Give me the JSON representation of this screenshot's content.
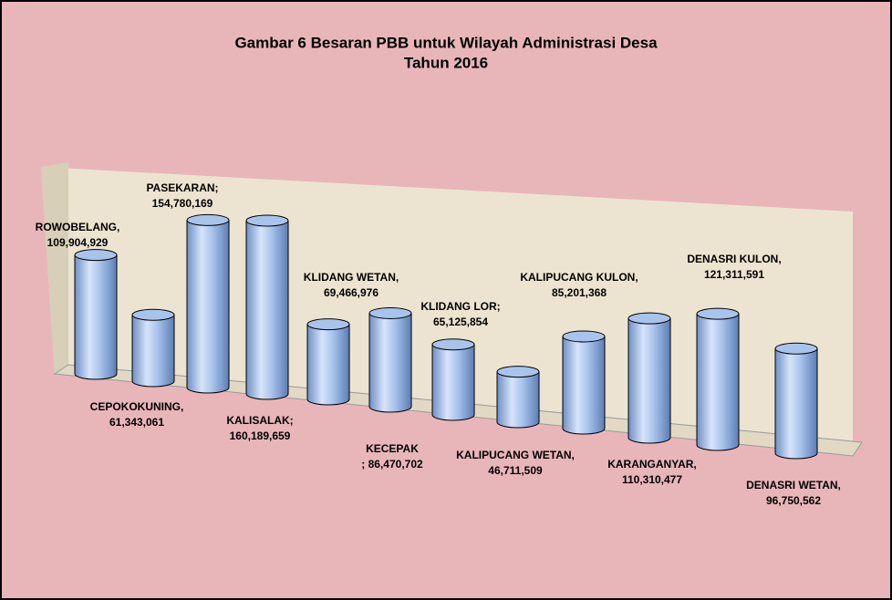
{
  "chart_data": {
    "type": "bar",
    "title": "Gambar 6 Besaran PBB untuk Wilayah Administrasi Desa",
    "subtitle": "Tahun 2016",
    "categories": [
      "ROWOBELANG,",
      "CEPOKOKUNING,",
      "PASEKARAN;",
      "KALISALAK;",
      "KLIDANG WETAN,",
      "KECEPAK",
      "KLIDANG LOR;",
      "KALIPUCANG WETAN,",
      "KALIPUCANG KULON,",
      "KARANGANYAR,",
      "DENASRI KULON,",
      "DENASRI WETAN,"
    ],
    "values": [
      109904929,
      61343061,
      154780169,
      160189659,
      69466976,
      86470702,
      65125854,
      46711509,
      85201368,
      110310477,
      121311591,
      96750562
    ],
    "value_labels": [
      "109,904,929",
      "61,343,061",
      "154,780,169",
      "160,189,659",
      "69,466,976",
      "; 86,470,702",
      "65,125,854",
      "46,711,509",
      "85,201,368",
      "110,310,477",
      "121,311,591",
      "96,750,562"
    ],
    "color": "#a9c4ec"
  }
}
